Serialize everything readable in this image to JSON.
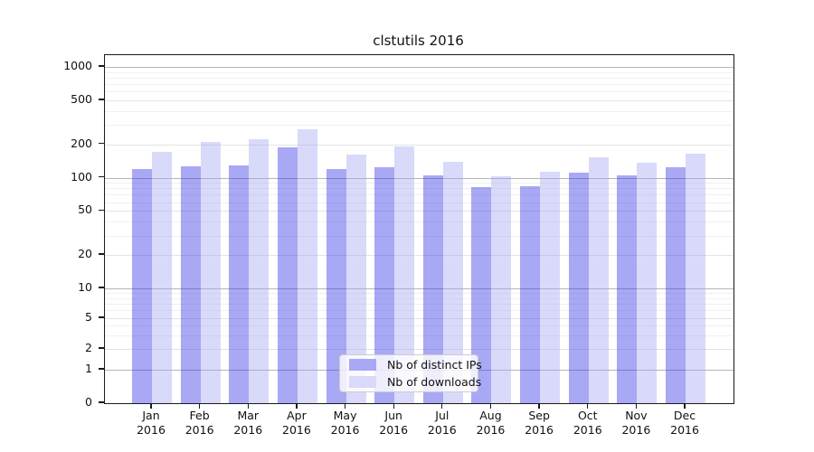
{
  "chart_data": {
    "type": "bar",
    "title": "clstutils 2016",
    "year": "2016",
    "categories": [
      "Jan",
      "Feb",
      "Mar",
      "Apr",
      "May",
      "Jun",
      "Jul",
      "Aug",
      "Sep",
      "Oct",
      "Nov",
      "Dec"
    ],
    "series": [
      {
        "name": "Nb of distinct IPs",
        "color": "#a8a8f4",
        "values": [
          120,
          126,
          129,
          187,
          119,
          124,
          105,
          82,
          83,
          111,
          104,
          124
        ]
      },
      {
        "name": "Nb of downloads",
        "color": "#d9d9f9",
        "values": [
          172,
          210,
          224,
          271,
          160,
          191,
          140,
          102,
          112,
          152,
          136,
          165
        ]
      }
    ],
    "y_ticks": [
      0,
      1,
      2,
      5,
      10,
      20,
      50,
      100,
      200,
      500,
      1000
    ],
    "yscale": "symlog",
    "ylim": [
      0,
      1100
    ],
    "xlabel": "",
    "ylabel": "",
    "grid": true,
    "legend_position": "lower center"
  }
}
